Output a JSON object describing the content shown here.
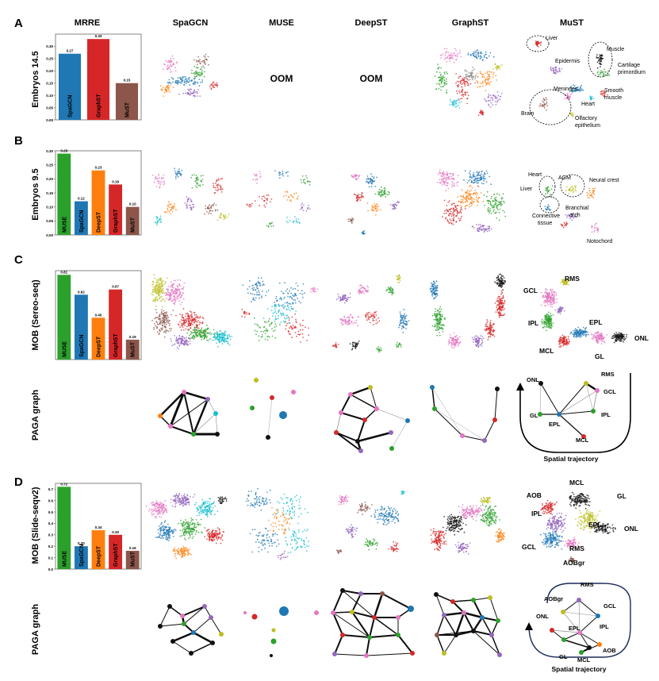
{
  "panels": [
    {
      "letter": "A",
      "row_label": "Embryos 14.5"
    },
    {
      "letter": "B",
      "row_label": "Embryos 9.5"
    },
    {
      "letter": "C",
      "row_label": "MOB (Sereo-seq)",
      "graph_label": "PAGA graph"
    },
    {
      "letter": "D",
      "row_label": "MOB (Slide-seqv2)",
      "graph_label": "PAGA graph"
    }
  ],
  "column_headers": [
    "MRRE",
    "SpaGCN",
    "MUSE",
    "DeepST",
    "GraphST",
    "MuST"
  ],
  "oom_label": "OOM",
  "trajectory_label": "Spatial trajectory",
  "colors": {
    "MUSE": "#2ca02c",
    "SpaGCN": "#1f77b4",
    "DeepST": "#ff7f0e",
    "GraphST": "#d62728",
    "MuST": "#8c564b"
  },
  "chart_data": [
    {
      "type": "bar",
      "title": "MRRE",
      "row": "Embryos 14.5",
      "categories": [
        "SpaGCN",
        "GraphST",
        "MuST"
      ],
      "values": [
        0.27,
        0.33,
        0.15
      ],
      "value_labels": [
        "0.27",
        "0.33",
        "0.15"
      ],
      "ylim": [
        0,
        0.35
      ],
      "yticks": [
        "0.00",
        "0.05",
        "0.10",
        "0.15",
        "0.20",
        "0.25",
        "0.30"
      ],
      "ytick_values": [
        0,
        0.05,
        0.1,
        0.15,
        0.2,
        0.25,
        0.3
      ]
    },
    {
      "type": "bar",
      "title": "MRRE",
      "row": "Embryos 9.5",
      "categories": [
        "MUSE",
        "SpaGCN",
        "DeepST",
        "GraphST",
        "MuST"
      ],
      "values": [
        0.29,
        0.12,
        0.23,
        0.18,
        0.1
      ],
      "value_labels": [
        "0.29",
        "0.12",
        "0.23",
        "0.18",
        "0.10"
      ],
      "ylim": [
        0,
        0.3
      ],
      "yticks": [
        "0.00",
        "0.05",
        "0.10",
        "0.15",
        "0.20",
        "0.25",
        "0.30"
      ],
      "ytick_values": [
        0,
        0.05,
        0.1,
        0.15,
        0.2,
        0.25,
        0.3
      ]
    },
    {
      "type": "bar",
      "title": "MRRE",
      "row": "MOB (Sereo-seq)",
      "categories": [
        "MUSE",
        "SpaGCN",
        "DeepST",
        "GraphST",
        "MuST"
      ],
      "values": [
        0.81,
        0.62,
        0.4,
        0.67,
        0.19
      ],
      "value_labels": [
        "0.81",
        "0.62",
        "0.40",
        "0.67",
        "0.19"
      ],
      "ylim": [
        0,
        0.85
      ],
      "yticks": [],
      "ytick_values": []
    },
    {
      "type": "bar",
      "title": "MRRE",
      "row": "MOB (Slide-seqv2)",
      "categories": [
        "MUSE",
        "SpaGCN",
        "DeepST",
        "GraphST",
        "MuST"
      ],
      "values": [
        0.72,
        0.2,
        0.34,
        0.3,
        0.16
      ],
      "value_labels": [
        "0.72",
        "0.20",
        "0.34",
        "0.30",
        "0.16"
      ],
      "ylim": [
        0,
        0.75
      ],
      "yticks": [
        "0.0",
        "0.1",
        "0.2",
        "0.3",
        "0.4",
        "0.5",
        "0.6",
        "0.7"
      ],
      "ytick_values": [
        0,
        0.1,
        0.2,
        0.3,
        0.4,
        0.5,
        0.6,
        0.7
      ]
    }
  ],
  "annotations": {
    "A": [
      "Liver",
      "Muscle",
      "Cartilage primordium",
      "Epidermis",
      "Meninges",
      "Smooth muscle",
      "Heart",
      "Brain",
      "Olfactory epithelium"
    ],
    "B": [
      "Heart",
      "AGM",
      "Neural crest",
      "Liver",
      "Branchial arch",
      "Connective tissue",
      "Notochord"
    ],
    "C_umap": [
      "RMS",
      "GCL",
      "IPL",
      "EPL",
      "ONL",
      "MCL",
      "GL"
    ],
    "C_paga": [
      "ONL",
      "RMS",
      "GCL",
      "GL",
      "EPL",
      "IPL",
      "MCL"
    ],
    "D_umap": [
      "MCL",
      "AOB",
      "GL",
      "IPL",
      "EPL",
      "ONL",
      "GCL",
      "RMS",
      "AOBgr"
    ],
    "D_paga": [
      "RMS",
      "AOBgr",
      "GCL",
      "ONL",
      "IPL",
      "EPL",
      "GL",
      "MCL",
      "AOB"
    ]
  }
}
